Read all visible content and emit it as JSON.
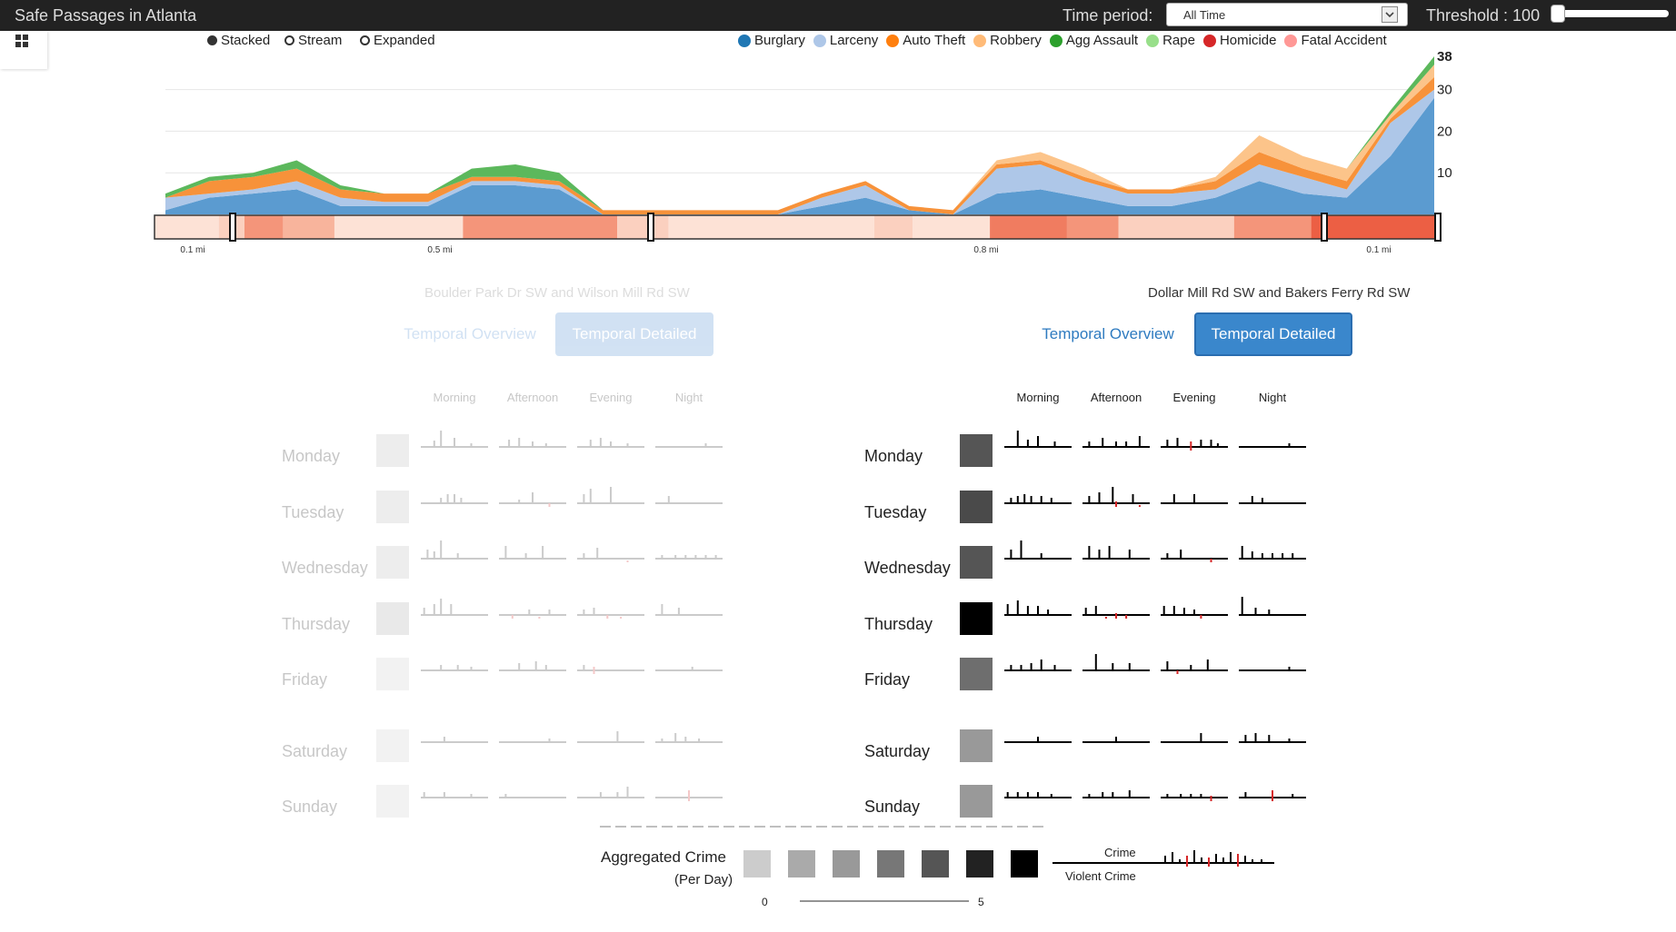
{
  "app": {
    "title": "Safe Passages in Atlanta"
  },
  "header": {
    "time_period_label": "Time period:",
    "time_period_value": "All Time",
    "threshold_label": "Threshold : 100",
    "threshold_value": 100
  },
  "modes": {
    "stacked": "Stacked",
    "stream": "Stream",
    "expanded": "Expanded",
    "selected": "Stacked"
  },
  "legend": [
    {
      "label": "Burglary",
      "color": "#1f77b4"
    },
    {
      "label": "Larceny",
      "color": "#aec7e8"
    },
    {
      "label": "Auto Theft",
      "color": "#ff7f0e"
    },
    {
      "label": "Robbery",
      "color": "#ffbb78"
    },
    {
      "label": "Agg Assault",
      "color": "#2ca02c"
    },
    {
      "label": "Rape",
      "color": "#98df8a"
    },
    {
      "label": "Homicide",
      "color": "#d62728"
    },
    {
      "label": "Fatal Accident",
      "color": "#ff9896"
    }
  ],
  "chart_data": {
    "type": "area",
    "stacked": true,
    "y_ticks": [
      "38",
      "30",
      "20",
      "10"
    ],
    "ylim": [
      0,
      38
    ],
    "series": [
      {
        "name": "Burglary",
        "color": "#5b9bd0",
        "values": [
          1,
          4,
          5,
          6,
          2,
          2,
          2,
          7,
          7,
          6,
          0,
          0,
          0,
          0,
          0,
          2,
          4,
          1,
          0,
          5,
          6,
          4,
          2,
          2,
          4,
          8,
          5,
          4,
          14,
          28
        ]
      },
      {
        "name": "Larceny",
        "color": "#aec7e8",
        "values": [
          3,
          1,
          1,
          2,
          2,
          1,
          1,
          1,
          1,
          1,
          0,
          0,
          0,
          0,
          0,
          2,
          3,
          0,
          0,
          6,
          6,
          4,
          3,
          3,
          2,
          4,
          4,
          2,
          8,
          2
        ]
      },
      {
        "name": "Auto Theft",
        "color": "#f7923a",
        "values": [
          0,
          3,
          3,
          3,
          2,
          2,
          2,
          1,
          1,
          1,
          1,
          1,
          1,
          1,
          1,
          1,
          1,
          1,
          1,
          1,
          1,
          1,
          1,
          1,
          2,
          3,
          2,
          2,
          1,
          3
        ]
      },
      {
        "name": "Robbery",
        "color": "#fcc48a",
        "values": [
          0,
          0,
          0,
          0,
          0,
          0,
          0,
          0,
          0,
          0,
          0,
          0,
          0,
          0,
          0,
          0,
          0,
          0,
          0,
          1,
          2,
          2,
          0,
          0,
          1,
          4,
          3,
          3,
          1,
          3
        ]
      },
      {
        "name": "Agg Assault",
        "color": "#5cb85c",
        "values": [
          1,
          1,
          1,
          2,
          1,
          0,
          0,
          2,
          3,
          2,
          0,
          0,
          0,
          0,
          0,
          0,
          0,
          0,
          0,
          0,
          0,
          0,
          0,
          0,
          0,
          0,
          0,
          0,
          1,
          2
        ]
      }
    ],
    "distance_labels": [
      "0.1 mi",
      "0.5 mi",
      "0.8 mi",
      "0.1 mi"
    ]
  },
  "locations": {
    "left": "Boulder Park Dr SW and Wilson Mill Rd SW",
    "right": "Dollar Mill Rd SW and Bakers Ferry Rd SW"
  },
  "tabs": {
    "overview": "Temporal Overview",
    "detailed": "Temporal Detailed"
  },
  "periods": [
    "Morning",
    "Afternoon",
    "Evening",
    "Night"
  ],
  "days": [
    "Monday",
    "Tuesday",
    "Wednesday",
    "Thursday",
    "Friday",
    "Saturday",
    "Sunday"
  ],
  "left_panel": {
    "day_shades": [
      "#bbb",
      "#bbb",
      "#bbb",
      "#aaa",
      "#ccc",
      "#ccc",
      "#ccc"
    ],
    "sparks": [
      [
        [
          [
            0.2,
            0.35
          ],
          [
            0.3,
            0.9
          ],
          [
            0.5,
            0.5
          ],
          [
            0.75,
            0.2
          ]
        ],
        [
          [
            0.15,
            0.4
          ],
          [
            0.3,
            0.5
          ],
          [
            0.5,
            0.3
          ],
          [
            0.7,
            0.2
          ]
        ],
        [
          [
            0.2,
            0.4
          ],
          [
            0.35,
            0.5
          ],
          [
            0.5,
            0.3
          ],
          [
            0.75,
            0.2
          ]
        ],
        [
          [
            0.75,
            0.2
          ]
        ]
      ],
      [
        [
          [
            0.3,
            0.3
          ],
          [
            0.4,
            0.5
          ],
          [
            0.5,
            0.5
          ],
          [
            0.6,
            0.3
          ]
        ],
        [
          [
            0.3,
            0.2
          ],
          [
            0.5,
            0.6
          ],
          [
            0.75,
            0.4,
            1
          ]
        ],
        [
          [
            0.1,
            0.5
          ],
          [
            0.2,
            0.8
          ],
          [
            0.5,
            0.9
          ]
        ],
        [
          [
            0.2,
            0.4
          ]
        ]
      ],
      [
        [
          [
            0.1,
            0.5
          ],
          [
            0.2,
            0.4
          ],
          [
            0.3,
            1.0
          ],
          [
            0.55,
            0.3
          ]
        ],
        [
          [
            0.1,
            0.7
          ],
          [
            0.4,
            0.3
          ],
          [
            0.65,
            0.7
          ]
        ],
        [
          [
            0.1,
            0.3
          ],
          [
            0.3,
            0.6
          ],
          [
            0.75,
            0.3,
            1
          ]
        ],
        [
          [
            0.1,
            0.2
          ],
          [
            0.3,
            0.2
          ],
          [
            0.45,
            0.2
          ],
          [
            0.6,
            0.2
          ],
          [
            0.75,
            0.2
          ],
          [
            0.9,
            0.2
          ]
        ]
      ],
      [
        [
          [
            0.05,
            0.4
          ],
          [
            0.2,
            0.6
          ],
          [
            0.3,
            0.9
          ],
          [
            0.45,
            0.6
          ]
        ],
        [
          [
            0.2,
            0.4,
            1
          ],
          [
            0.45,
            0.3
          ],
          [
            0.6,
            0.3,
            1
          ],
          [
            0.75,
            0.3
          ]
        ],
        [
          [
            0.1,
            0.3
          ],
          [
            0.25,
            0.4
          ],
          [
            0.45,
            0.4,
            1
          ],
          [
            0.65,
            0.3,
            1
          ]
        ],
        [
          [
            0.1,
            0.6
          ],
          [
            0.35,
            0.4
          ]
        ]
      ],
      [
        [
          [
            0.3,
            0.3
          ],
          [
            0.55,
            0.3
          ],
          [
            0.75,
            0.2
          ]
        ],
        [
          [
            0.3,
            0.4
          ],
          [
            0.55,
            0.5
          ],
          [
            0.7,
            0.3
          ]
        ],
        [
          [
            0.1,
            0.3
          ],
          [
            0.25,
            0.6,
            1
          ]
        ],
        [
          [
            0.55,
            0.2
          ]
        ]
      ],
      [
        [
          [
            0.35,
            0.3
          ]
        ],
        [
          [
            0.75,
            0.2
          ]
        ],
        [
          [
            0.6,
            0.6
          ]
        ],
        [
          [
            0.1,
            0.2
          ],
          [
            0.3,
            0.5
          ],
          [
            0.45,
            0.3
          ],
          [
            0.65,
            0.2
          ]
        ]
      ],
      [
        [
          [
            0.05,
            0.3
          ],
          [
            0.35,
            0.3
          ],
          [
            0.75,
            0.2
          ]
        ],
        [
          [
            0.1,
            0.2
          ]
        ],
        [
          [
            0.35,
            0.3
          ],
          [
            0.6,
            0.3
          ],
          [
            0.75,
            0.6
          ]
        ],
        [
          [
            0.5,
            0.8,
            1
          ]
        ]
      ]
    ]
  },
  "right_panel": {
    "day_shades": [
      "#555",
      "#4a4a4a",
      "#555",
      "#000",
      "#6e6e6e",
      "#999",
      "#999"
    ],
    "sparks": [
      [
        [
          [
            0.2,
            0.9
          ],
          [
            0.35,
            0.4
          ],
          [
            0.5,
            0.6
          ],
          [
            0.75,
            0.3
          ]
        ],
        [
          [
            0.1,
            0.3
          ],
          [
            0.3,
            0.5
          ],
          [
            0.5,
            0.3
          ],
          [
            0.65,
            0.3
          ],
          [
            0.85,
            0.6
          ]
        ],
        [
          [
            0.1,
            0.4
          ],
          [
            0.25,
            0.5
          ],
          [
            0.45,
            0.7,
            1
          ],
          [
            0.6,
            0.4
          ],
          [
            0.75,
            0.4
          ],
          [
            0.85,
            0.2
          ]
        ],
        [
          [
            0.75,
            0.2
          ]
        ]
      ],
      [
        [
          [
            0.1,
            0.3
          ],
          [
            0.2,
            0.4
          ],
          [
            0.3,
            0.5
          ],
          [
            0.4,
            0.4
          ],
          [
            0.55,
            0.4
          ],
          [
            0.7,
            0.3
          ]
        ],
        [
          [
            0.1,
            0.4
          ],
          [
            0.25,
            0.6
          ],
          [
            0.45,
            0.9
          ],
          [
            0.5,
            0.5,
            1
          ],
          [
            0.75,
            0.5
          ],
          [
            0.85,
            0.3,
            1
          ]
        ],
        [
          [
            0.2,
            0.5
          ],
          [
            0.5,
            0.5
          ]
        ],
        [
          [
            0.2,
            0.4
          ],
          [
            0.35,
            0.3
          ]
        ]
      ],
      [
        [
          [
            0.1,
            0.5
          ],
          [
            0.25,
            1.0
          ],
          [
            0.55,
            0.3
          ]
        ],
        [
          [
            0.1,
            0.7
          ],
          [
            0.25,
            0.5
          ],
          [
            0.4,
            0.7
          ],
          [
            0.7,
            0.5
          ]
        ],
        [
          [
            0.1,
            0.3
          ],
          [
            0.3,
            0.5
          ],
          [
            0.75,
            0.4,
            1
          ]
        ],
        [
          [
            0.05,
            0.7
          ],
          [
            0.2,
            0.4
          ],
          [
            0.35,
            0.3
          ],
          [
            0.5,
            0.3
          ],
          [
            0.65,
            0.3
          ],
          [
            0.8,
            0.3
          ]
        ]
      ],
      [
        [
          [
            0.05,
            0.6
          ],
          [
            0.2,
            0.8
          ],
          [
            0.35,
            0.5
          ],
          [
            0.5,
            0.5
          ],
          [
            0.65,
            0.3
          ]
        ],
        [
          [
            0.05,
            0.4
          ],
          [
            0.2,
            0.5
          ],
          [
            0.35,
            0.3,
            1
          ],
          [
            0.5,
            0.5,
            1
          ],
          [
            0.65,
            0.4,
            1
          ]
        ],
        [
          [
            0.05,
            0.5
          ],
          [
            0.2,
            0.5
          ],
          [
            0.35,
            0.4
          ],
          [
            0.5,
            0.3
          ],
          [
            0.6,
            0.4,
            1
          ]
        ],
        [
          [
            0.05,
            1.0
          ],
          [
            0.25,
            0.4
          ],
          [
            0.45,
            0.3
          ]
        ]
      ],
      [
        [
          [
            0.1,
            0.3
          ],
          [
            0.25,
            0.3
          ],
          [
            0.4,
            0.4
          ],
          [
            0.55,
            0.6
          ],
          [
            0.75,
            0.3
          ]
        ],
        [
          [
            0.2,
            0.9
          ],
          [
            0.45,
            0.4
          ],
          [
            0.7,
            0.4
          ]
        ],
        [
          [
            0.1,
            0.5
          ],
          [
            0.25,
            0.4,
            1
          ],
          [
            0.45,
            0.3
          ],
          [
            0.7,
            0.6
          ]
        ],
        [
          [
            0.75,
            0.2
          ]
        ]
      ],
      [
        [
          [
            0.5,
            0.3
          ]
        ],
        [
          [
            0.5,
            0.3
          ]
        ],
        [
          [
            0.6,
            0.5
          ]
        ],
        [
          [
            0.1,
            0.4
          ],
          [
            0.25,
            0.5
          ],
          [
            0.45,
            0.4
          ],
          [
            0.75,
            0.2
          ]
        ]
      ],
      [
        [
          [
            0.05,
            0.3
          ],
          [
            0.2,
            0.3
          ],
          [
            0.35,
            0.3
          ],
          [
            0.5,
            0.3
          ],
          [
            0.7,
            0.2
          ]
        ],
        [
          [
            0.1,
            0.2
          ],
          [
            0.3,
            0.3
          ],
          [
            0.45,
            0.3
          ],
          [
            0.7,
            0.4
          ]
        ],
        [
          [
            0.1,
            0.2
          ],
          [
            0.3,
            0.2
          ],
          [
            0.45,
            0.2
          ],
          [
            0.6,
            0.2
          ],
          [
            0.75,
            0.5,
            1
          ]
        ],
        [
          [
            0.1,
            0.3
          ],
          [
            0.5,
            0.8,
            1
          ],
          [
            0.8,
            0.2
          ]
        ]
      ]
    ]
  },
  "aggregated": {
    "title": "Aggregated Crime",
    "subtitle": "(Per Day)",
    "shades": [
      "#ccc",
      "#aaa",
      "#999",
      "#777",
      "#555",
      "#222",
      "#000"
    ],
    "scale_min": "0",
    "scale_max": "5",
    "crime_label": "Crime",
    "violent_label": "Violent Crime"
  }
}
